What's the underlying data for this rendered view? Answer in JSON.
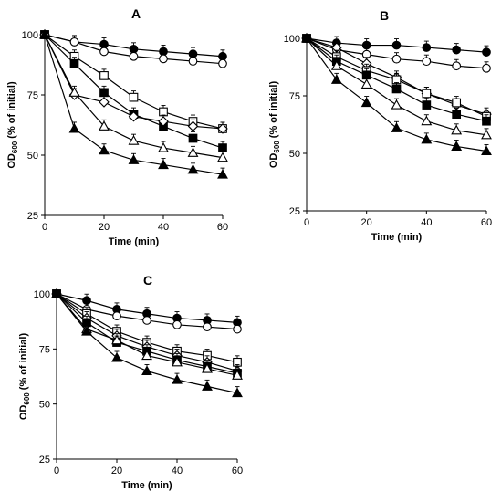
{
  "chart_data": [
    {
      "type": "line",
      "title": "A",
      "xlabel": "Time (min)",
      "ylabel_main": "OD",
      "ylabel_sub": "600",
      "ylabel_rest": " (% of initial)",
      "xlim": [
        0,
        60
      ],
      "ylim": [
        25,
        100
      ],
      "xticks": [
        "0",
        "20",
        "40",
        "60"
      ],
      "yticks": [
        "25",
        "50",
        "75",
        "100"
      ],
      "x": [
        0,
        10,
        20,
        30,
        40,
        50,
        60
      ],
      "series": [
        {
          "marker": "circle-filled",
          "values": [
            100,
            97,
            96,
            94,
            93,
            92,
            91
          ]
        },
        {
          "marker": "circle-open",
          "values": [
            100,
            97,
            93,
            91,
            90,
            89,
            88
          ]
        },
        {
          "marker": "square-open",
          "values": [
            100,
            91,
            83,
            74,
            68,
            64,
            61
          ]
        },
        {
          "marker": "square-filled",
          "values": [
            100,
            88,
            76,
            67,
            62,
            57,
            53
          ]
        },
        {
          "marker": "diamond-open",
          "values": [
            100,
            75,
            72,
            66,
            64,
            62,
            61
          ]
        },
        {
          "marker": "triangle-open",
          "values": [
            100,
            76,
            62,
            56,
            53,
            51,
            49
          ]
        },
        {
          "marker": "triangle-filled",
          "values": [
            100,
            61,
            52,
            48,
            46,
            44,
            42
          ]
        }
      ],
      "error_bars": true
    },
    {
      "type": "line",
      "title": "B",
      "xlabel": "Time (min)",
      "ylabel_main": "OD",
      "ylabel_sub": "600",
      "ylabel_rest": " (% of initial)",
      "xlim": [
        0,
        60
      ],
      "ylim": [
        25,
        100
      ],
      "xticks": [
        "0",
        "20",
        "40",
        "60"
      ],
      "yticks": [
        "25",
        "50",
        "75",
        "100"
      ],
      "x": [
        0,
        10,
        20,
        30,
        40,
        50,
        60
      ],
      "series": [
        {
          "marker": "circle-filled",
          "values": [
            100,
            98,
            97,
            97,
            96,
            95,
            94
          ]
        },
        {
          "marker": "circle-open",
          "values": [
            100,
            95,
            93,
            91,
            90,
            88,
            87
          ]
        },
        {
          "marker": "diamond-open",
          "values": [
            100,
            96,
            89,
            83,
            76,
            71,
            67
          ]
        },
        {
          "marker": "square-open",
          "values": [
            100,
            92,
            86,
            82,
            76,
            72,
            66
          ]
        },
        {
          "marker": "square-filled",
          "values": [
            100,
            90,
            84,
            78,
            71,
            67,
            64
          ]
        },
        {
          "marker": "triangle-open",
          "values": [
            100,
            88,
            80,
            71,
            64,
            60,
            58
          ]
        },
        {
          "marker": "triangle-filled",
          "values": [
            100,
            82,
            72,
            61,
            56,
            53,
            51
          ]
        }
      ],
      "error_bars": true
    },
    {
      "type": "line",
      "title": "C",
      "xlabel": "Time (min)",
      "ylabel_main": "OD",
      "ylabel_sub": "600",
      "ylabel_rest": " (% of initial)",
      "xlim": [
        0,
        60
      ],
      "ylim": [
        25,
        100
      ],
      "xticks": [
        "0",
        "20",
        "40",
        "60"
      ],
      "yticks": [
        "25",
        "50",
        "75",
        "100"
      ],
      "x": [
        0,
        10,
        20,
        30,
        40,
        50,
        60
      ],
      "series": [
        {
          "marker": "circle-filled",
          "values": [
            100,
            97,
            93,
            91,
            89,
            88,
            87
          ]
        },
        {
          "marker": "circle-open",
          "values": [
            100,
            93,
            90,
            88,
            86,
            85,
            84
          ]
        },
        {
          "marker": "square-open",
          "values": [
            100,
            91,
            83,
            78,
            74,
            72,
            69
          ]
        },
        {
          "marker": "diamond-open",
          "values": [
            100,
            89,
            81,
            76,
            72,
            69,
            65
          ]
        },
        {
          "marker": "square-filled",
          "values": [
            100,
            87,
            78,
            74,
            70,
            67,
            64
          ]
        },
        {
          "marker": "triangle-open",
          "values": [
            100,
            84,
            79,
            72,
            69,
            66,
            63
          ]
        },
        {
          "marker": "triangle-filled",
          "values": [
            100,
            83,
            71,
            65,
            61,
            58,
            55
          ]
        }
      ],
      "error_bars": true
    }
  ]
}
